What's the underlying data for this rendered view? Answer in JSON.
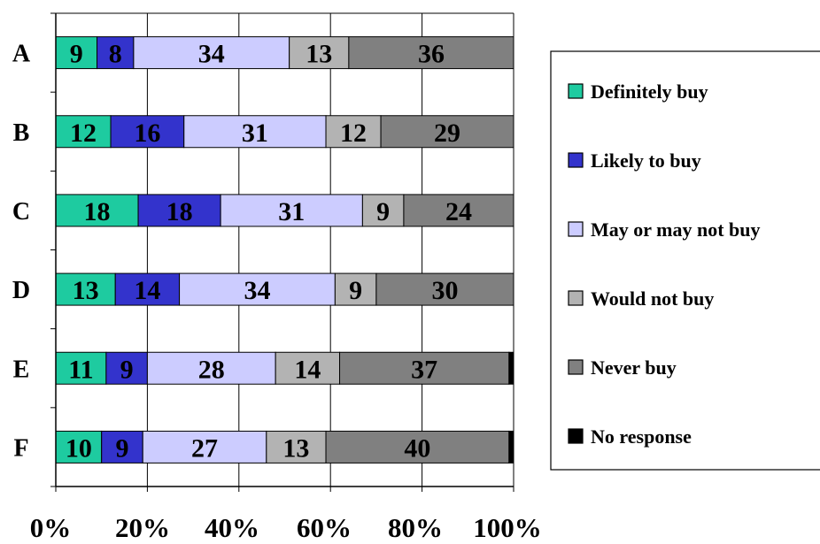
{
  "chart_data": {
    "type": "bar",
    "orientation": "horizontal",
    "stacked": "percent",
    "title": "",
    "xlabel": "",
    "ylabel": "",
    "xlim": [
      0,
      100
    ],
    "x_tick_labels": [
      "0%",
      "20%",
      "40%",
      "60%",
      "80%",
      "100%"
    ],
    "grid": true,
    "legend_position": "right",
    "categories": [
      "A",
      "B",
      "C",
      "D",
      "E",
      "F"
    ],
    "series": [
      {
        "name": "Definitely buy",
        "color": "#1ECBA0",
        "values": [
          9,
          12,
          18,
          13,
          11,
          10
        ]
      },
      {
        "name": "Likely to buy",
        "color": "#3333CC",
        "values": [
          8,
          16,
          18,
          14,
          9,
          9
        ]
      },
      {
        "name": "May or may not buy",
        "color": "#CCCCFF",
        "values": [
          34,
          31,
          31,
          34,
          28,
          27
        ]
      },
      {
        "name": "Would not buy",
        "color": "#B3B3B3",
        "values": [
          13,
          12,
          9,
          9,
          14,
          13
        ]
      },
      {
        "name": "Never buy",
        "color": "#808080",
        "values": [
          36,
          29,
          24,
          30,
          37,
          40
        ]
      },
      {
        "name": "No response",
        "color": "#000000",
        "values": [
          0,
          0,
          0,
          0,
          1,
          1
        ]
      }
    ]
  }
}
